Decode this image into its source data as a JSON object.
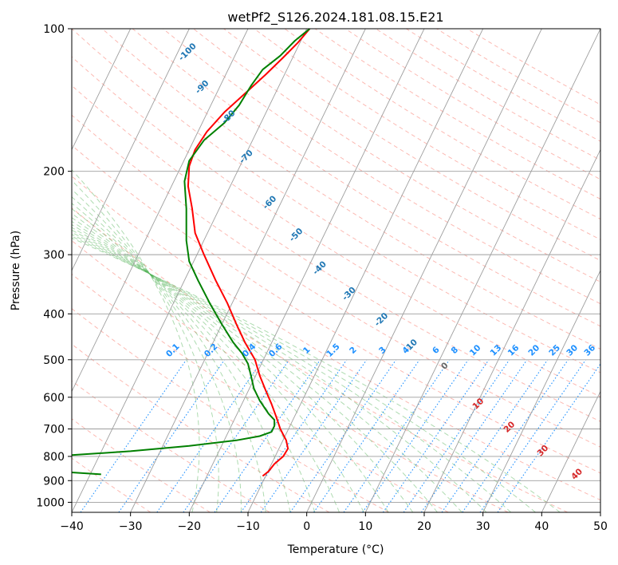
{
  "chart_data": {
    "type": "line",
    "title": "wetPf2_S126.2024.181.08.15.E21",
    "xlabel": "Temperature (°C)",
    "ylabel": "Pressure (hPa)",
    "xlim": [
      -40,
      50
    ],
    "ylim": [
      1050,
      100
    ],
    "y_scale": "log",
    "grid": true,
    "x_ticks": [
      -40,
      -30,
      -20,
      -10,
      0,
      10,
      20,
      30,
      40,
      50
    ],
    "x_tick_labels": [
      "−40",
      "−30",
      "−20",
      "−10",
      "0",
      "10",
      "20",
      "30",
      "40",
      "50"
    ],
    "y_ticks": [
      1000,
      900,
      800,
      700,
      600,
      500,
      400,
      300,
      200,
      100
    ],
    "y_tick_labels": [
      "1000",
      "900",
      "800",
      "700",
      "600",
      "500",
      "400",
      "300",
      "200",
      "100"
    ],
    "series": [
      {
        "color": "#ff0000",
        "points": [
          [
            -7.5,
            880
          ],
          [
            -6.5,
            860
          ],
          [
            -5.5,
            830
          ],
          [
            -4.0,
            800
          ],
          [
            -3.2,
            770
          ],
          [
            -3.5,
            740
          ],
          [
            -4.5,
            700
          ],
          [
            -5.2,
            660
          ],
          [
            -6.0,
            620
          ],
          [
            -7.0,
            580
          ],
          [
            -8.0,
            540
          ],
          [
            -8.8,
            500
          ],
          [
            -10.5,
            460
          ],
          [
            -12.0,
            420
          ],
          [
            -13.5,
            380
          ],
          [
            -15.5,
            340
          ],
          [
            -17.5,
            300
          ],
          [
            -19.0,
            270
          ],
          [
            -19.5,
            240
          ],
          [
            -20.2,
            215
          ],
          [
            -20.0,
            195
          ],
          [
            -19.0,
            180
          ],
          [
            -17.0,
            165
          ],
          [
            -14.0,
            150
          ],
          [
            -10.5,
            137
          ],
          [
            -7.0,
            125
          ],
          [
            -4.0,
            115
          ],
          [
            -1.5,
            107
          ],
          [
            0.5,
            100
          ]
        ]
      },
      {
        "color": "#008000",
        "points": [
          [
            -40.0,
            795
          ],
          [
            -30.0,
            780
          ],
          [
            -20.0,
            760
          ],
          [
            -12.0,
            740
          ],
          [
            -8.0,
            725
          ],
          [
            -6.0,
            710
          ],
          [
            -5.5,
            690
          ],
          [
            -5.5,
            670
          ],
          [
            -6.5,
            650
          ],
          [
            -8.0,
            610
          ],
          [
            -9.0,
            575
          ],
          [
            -9.5,
            540
          ],
          [
            -10.0,
            510
          ],
          [
            -11.0,
            485
          ],
          [
            -12.5,
            460
          ],
          [
            -14.5,
            420
          ],
          [
            -16.5,
            380
          ],
          [
            -18.5,
            340
          ],
          [
            -20.0,
            310
          ],
          [
            -20.5,
            280
          ],
          [
            -20.5,
            240
          ],
          [
            -20.8,
            210
          ],
          [
            -20.0,
            190
          ],
          [
            -17.5,
            172
          ],
          [
            -14.0,
            158
          ],
          [
            -11.5,
            145
          ],
          [
            -9.5,
            132
          ],
          [
            -7.5,
            122
          ],
          [
            -4.5,
            114
          ],
          [
            -2.0,
            106
          ],
          [
            0.5,
            100
          ]
        ]
      },
      {
        "color": "#008000",
        "points": [
          [
            -40.0,
            865
          ],
          [
            -35.0,
            873
          ]
        ]
      }
    ],
    "background_lines": {
      "skew": 40,
      "dry_adiabat_colors": "#fa8072",
      "moist_adiabat_colors": "#4caf50",
      "mixing_ratio_color": "#1e90ff",
      "dry_adiabat_labels": [
        {
          "text": "0",
          "x": 23.8,
          "p": 520,
          "color": "#666666"
        },
        {
          "text": "10",
          "x": 29.5,
          "p": 625,
          "color": "#d62728"
        },
        {
          "text": "20",
          "x": 34.8,
          "p": 700,
          "color": "#d62728"
        },
        {
          "text": "30",
          "x": 40.5,
          "p": 785,
          "color": "#d62728"
        },
        {
          "text": "40",
          "x": 46.3,
          "p": 880,
          "color": "#d62728"
        }
      ],
      "moist_labels": [
        {
          "text": "-100",
          "x": -20.0,
          "p": 113
        },
        {
          "text": "-90",
          "x": -17.5,
          "p": 134
        },
        {
          "text": "-80",
          "x": -13.0,
          "p": 155
        },
        {
          "text": "-70",
          "x": -10.0,
          "p": 188
        },
        {
          "text": "-60",
          "x": -6.0,
          "p": 235
        },
        {
          "text": "-50",
          "x": -1.5,
          "p": 275
        },
        {
          "text": "-40",
          "x": 2.5,
          "p": 323
        },
        {
          "text": "-30",
          "x": 7.5,
          "p": 366
        },
        {
          "text": "-20",
          "x": 13.0,
          "p": 415
        },
        {
          "text": "-10",
          "x": 18.0,
          "p": 472
        }
      ],
      "mixing_ratio_labels": [
        {
          "text": "0.1",
          "x": -22.5,
          "p": 482
        },
        {
          "text": "0.2",
          "x": -16.0,
          "p": 482
        },
        {
          "text": "0.4",
          "x": -9.5,
          "p": 482
        },
        {
          "text": "0.6",
          "x": -5.0,
          "p": 482
        },
        {
          "text": "1",
          "x": 0.3,
          "p": 482
        },
        {
          "text": "1.5",
          "x": 4.8,
          "p": 482
        },
        {
          "text": "2",
          "x": 8.2,
          "p": 482
        },
        {
          "text": "3",
          "x": 13.2,
          "p": 482
        },
        {
          "text": "4",
          "x": 17.2,
          "p": 482
        },
        {
          "text": "6",
          "x": 22.3,
          "p": 482
        },
        {
          "text": "8",
          "x": 25.5,
          "p": 482
        },
        {
          "text": "10",
          "x": 29.0,
          "p": 482
        },
        {
          "text": "13",
          "x": 32.5,
          "p": 482
        },
        {
          "text": "16",
          "x": 35.5,
          "p": 482
        },
        {
          "text": "20",
          "x": 39.0,
          "p": 482
        },
        {
          "text": "25",
          "x": 42.5,
          "p": 482
        },
        {
          "text": "30",
          "x": 45.5,
          "p": 482
        },
        {
          "text": "36",
          "x": 48.5,
          "p": 482
        }
      ]
    }
  }
}
